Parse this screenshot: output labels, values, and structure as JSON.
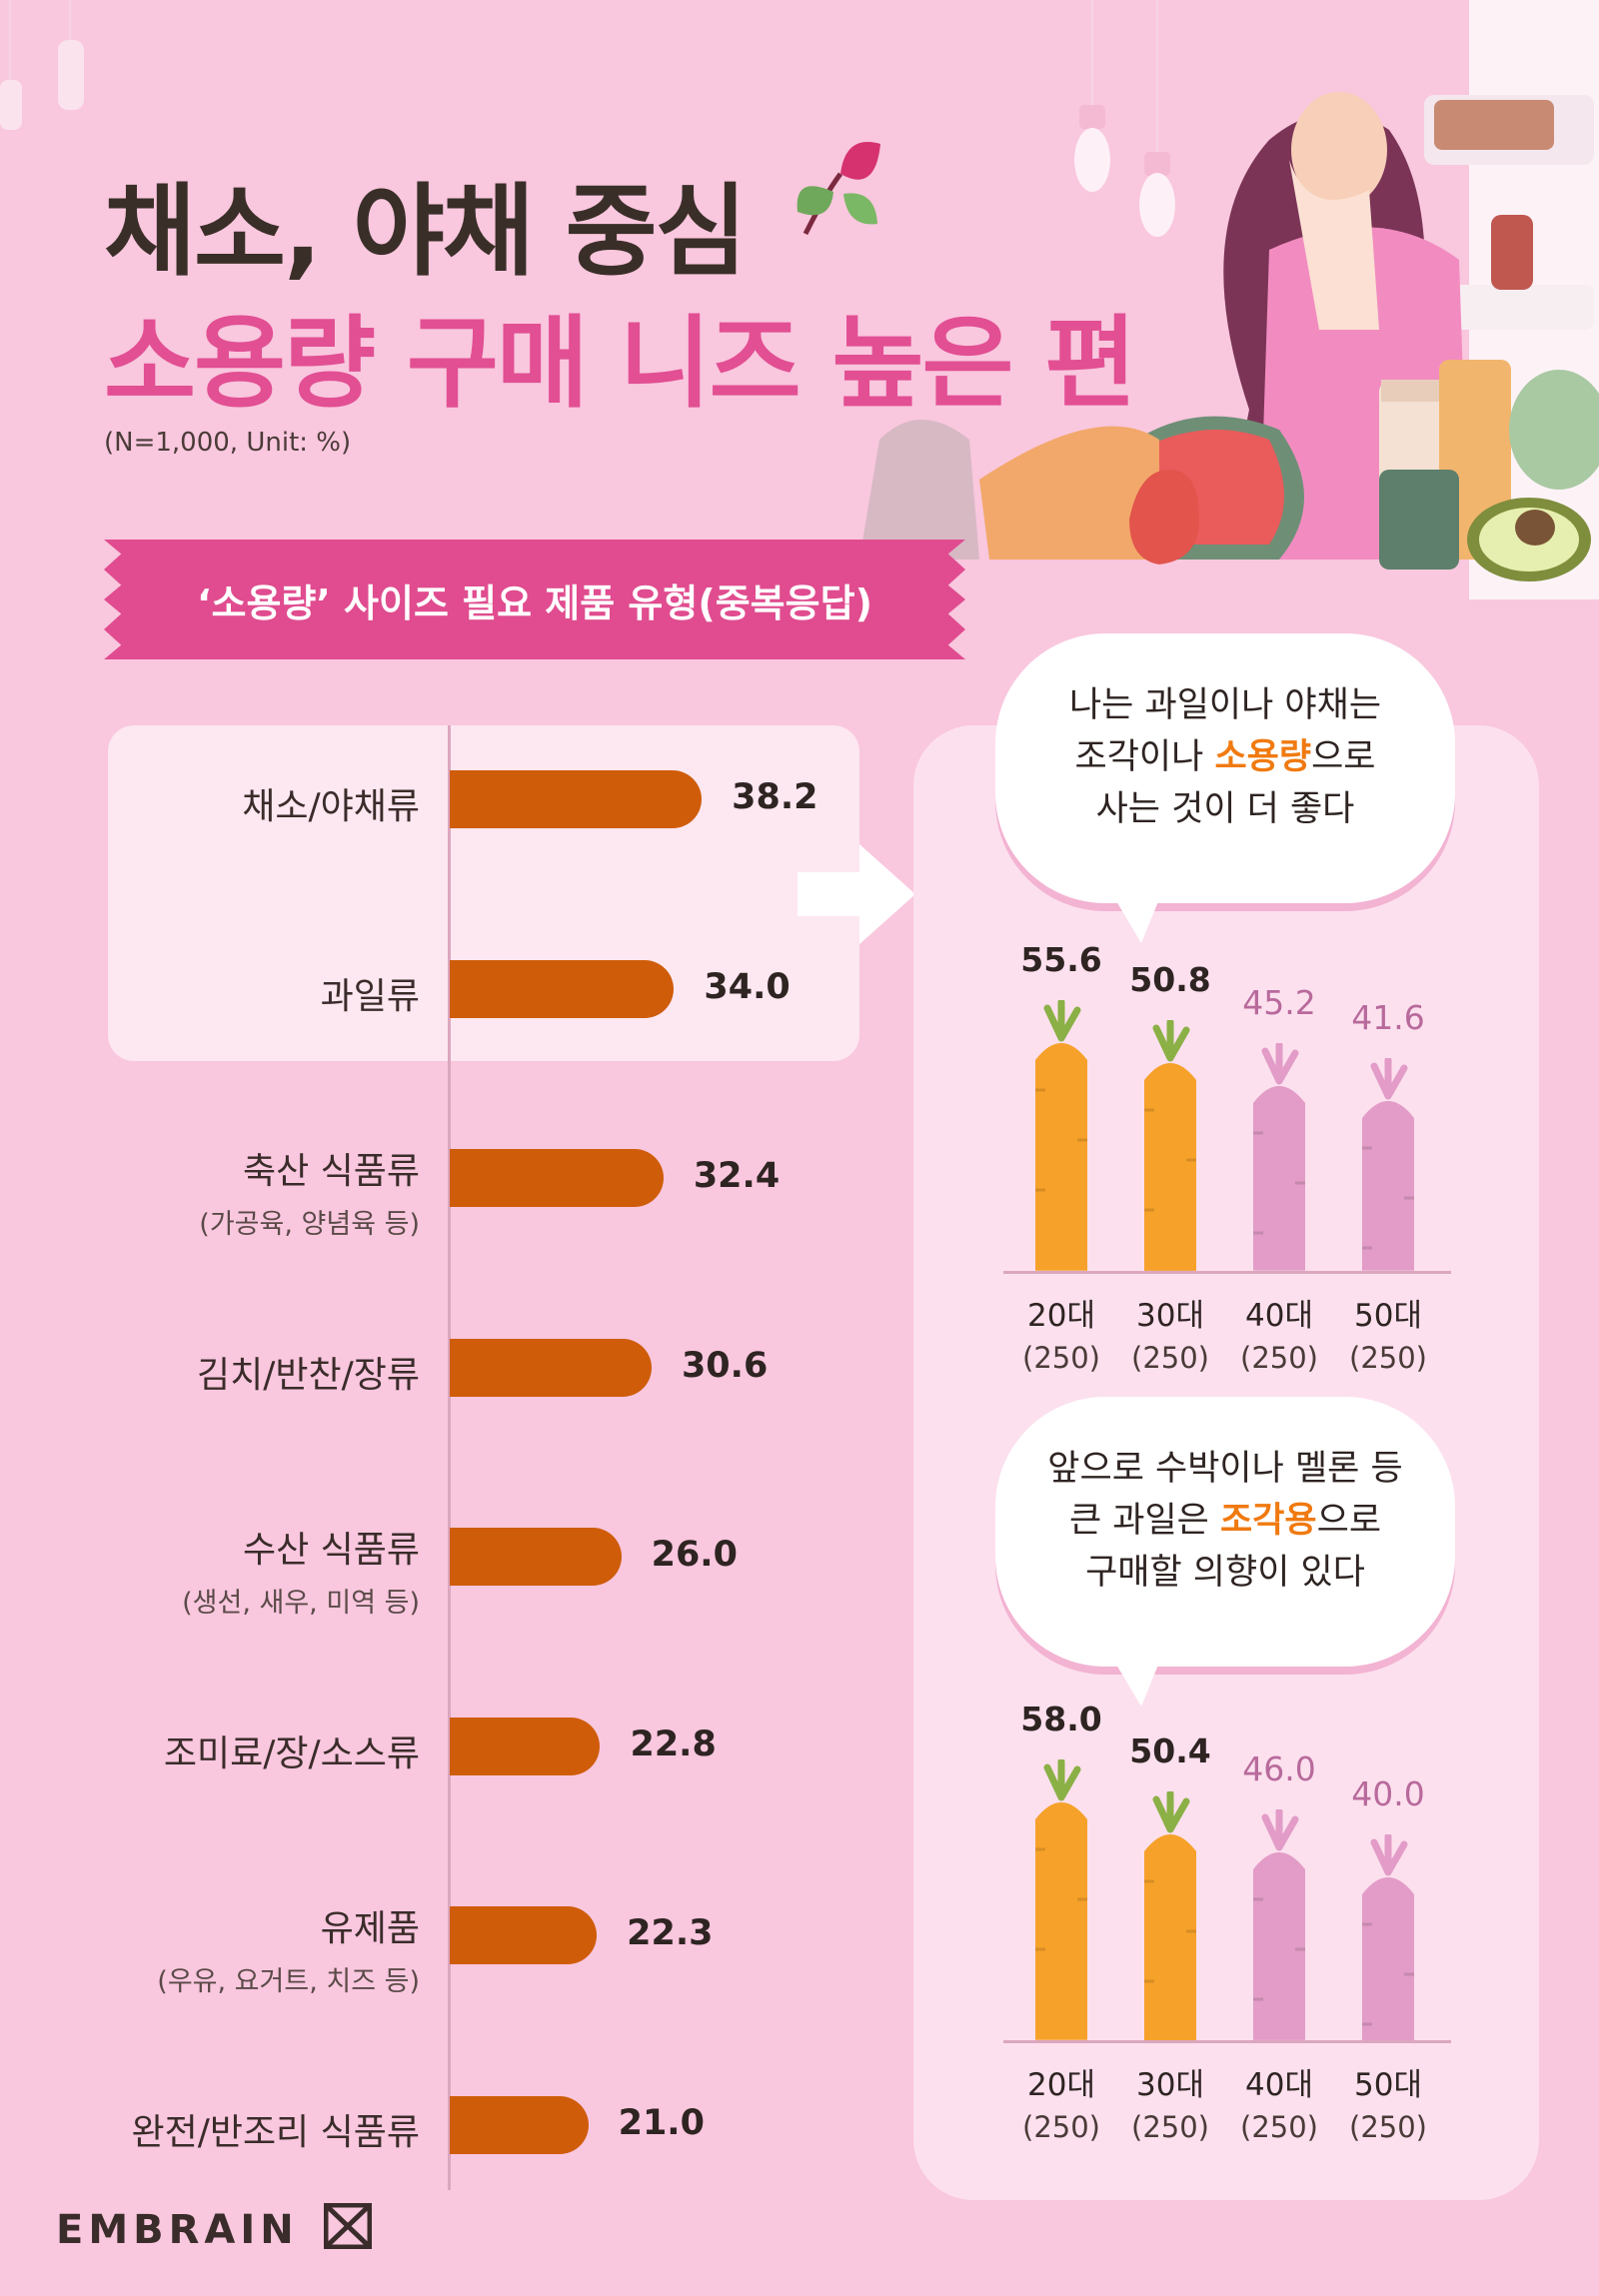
{
  "header": {
    "title_line1": "채소, 야채 중심",
    "title_line2": "소용량 구매 니즈 높은 편",
    "note": "(N=1,000, Unit: %)"
  },
  "banner": {
    "label": "‘소용량’ 사이즈 필요 제품 유형(중복응답)"
  },
  "colors": {
    "bar": "#cf5c09",
    "accent": "#e24f93",
    "highlight": "#f07a10",
    "carrot": "#f6a12a",
    "carrot_faded": "#e29cc7"
  },
  "chart_data": [
    {
      "type": "bar",
      "orientation": "horizontal",
      "title": "‘소용량’ 사이즈 필요 제품 유형(중복응답)",
      "categories": [
        {
          "label": "채소/야채류",
          "sub": ""
        },
        {
          "label": "과일류",
          "sub": ""
        },
        {
          "label": "축산 식품류",
          "sub": "(가공육, 양념육 등)"
        },
        {
          "label": "김치/반찬/장류",
          "sub": ""
        },
        {
          "label": "수산 식품류",
          "sub": "(생선, 새우, 미역 등)"
        },
        {
          "label": "조미료/장/소스류",
          "sub": ""
        },
        {
          "label": "유제품",
          "sub": "(우유, 요거트, 치즈 등)"
        },
        {
          "label": "완전/반조리 식품류",
          "sub": ""
        }
      ],
      "values": [
        "38.2",
        "34.0",
        "32.4",
        "30.6",
        "26.0",
        "22.8",
        "22.3",
        "21.0"
      ],
      "xlim": [
        0,
        100
      ]
    },
    {
      "type": "bar",
      "title": "나는 과일이나 야채는 조각이나 소용량으로 사는 것이 더 좋다",
      "categories": [
        {
          "label": "20대",
          "n": "(250)"
        },
        {
          "label": "30대",
          "n": "(250)"
        },
        {
          "label": "40대",
          "n": "(250)"
        },
        {
          "label": "50대",
          "n": "(250)"
        }
      ],
      "values": [
        "55.6",
        "50.8",
        "45.2",
        "41.6"
      ]
    },
    {
      "type": "bar",
      "title": "앞으로 수박이나 멜론 등 큰 과일은 조각용으로 구매할 의향이 있다",
      "categories": [
        {
          "label": "20대",
          "n": "(250)"
        },
        {
          "label": "30대",
          "n": "(250)"
        },
        {
          "label": "40대",
          "n": "(250)"
        },
        {
          "label": "50대",
          "n": "(250)"
        }
      ],
      "values": [
        "58.0",
        "50.4",
        "46.0",
        "40.0"
      ]
    }
  ],
  "bubbles": [
    {
      "line1": "나는 과일이나 야채는",
      "line2_pre": "조각이나 ",
      "line2_hl": "소용량",
      "line2_post": "으로",
      "line3": "사는 것이 더 좋다"
    },
    {
      "line1": "앞으로 수박이나 멜론 등",
      "line2_pre": "큰 과일은 ",
      "line2_hl": "조각용",
      "line2_post": "으로",
      "line3": "구매할 의향이 있다"
    }
  ],
  "footer": {
    "logo": "EMBRAIN"
  }
}
